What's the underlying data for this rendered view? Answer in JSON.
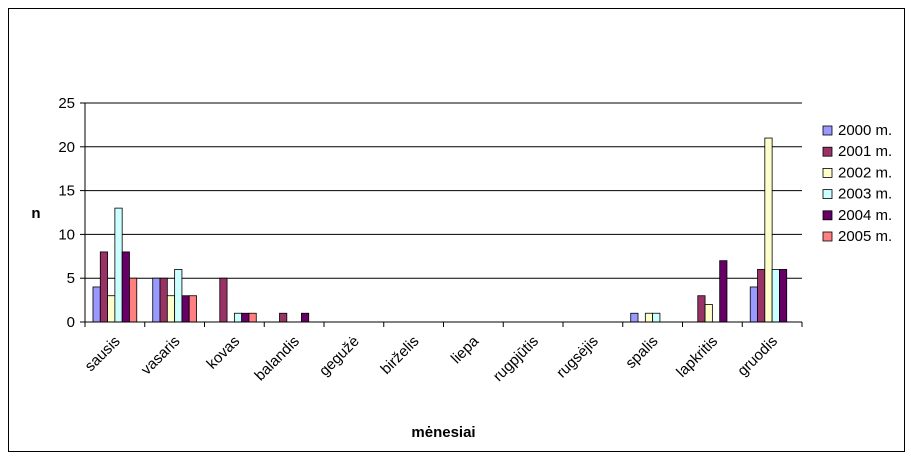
{
  "chart_data": {
    "type": "bar",
    "title": "",
    "xlabel": "mėnesiai",
    "ylabel": "n",
    "ylim": [
      0,
      25
    ],
    "yticks": [
      0,
      5,
      10,
      15,
      20,
      25
    ],
    "grid": true,
    "legend_position": "right",
    "categories": [
      "sausis",
      "vasaris",
      "kovas",
      "balandis",
      "gegužė",
      "birželis",
      "liepa",
      "rugpjūtis",
      "rugsėjis",
      "spalis",
      "lapkritis",
      "gruodis"
    ],
    "series": [
      {
        "name": "2000 m.",
        "color": "#9999ff",
        "values": [
          4,
          5,
          0,
          0,
          0,
          0,
          0,
          0,
          0,
          1,
          0,
          4
        ]
      },
      {
        "name": "2001 m.",
        "color": "#993366",
        "values": [
          8,
          5,
          5,
          1,
          0,
          0,
          0,
          0,
          0,
          0,
          3,
          6
        ]
      },
      {
        "name": "2002 m.",
        "color": "#ffffcc",
        "values": [
          3,
          3,
          0,
          0,
          0,
          0,
          0,
          0,
          0,
          1,
          2,
          21
        ]
      },
      {
        "name": "2003 m.",
        "color": "#ccffff",
        "values": [
          13,
          6,
          1,
          0,
          0,
          0,
          0,
          0,
          0,
          1,
          0,
          6
        ]
      },
      {
        "name": "2004 m.",
        "color": "#660066",
        "values": [
          8,
          3,
          1,
          1,
          0,
          0,
          0,
          0,
          0,
          0,
          7,
          6
        ]
      },
      {
        "name": "2005 m.",
        "color": "#ff8080",
        "values": [
          5,
          3,
          1,
          0,
          0,
          0,
          0,
          0,
          0,
          0,
          0,
          0
        ]
      }
    ]
  }
}
